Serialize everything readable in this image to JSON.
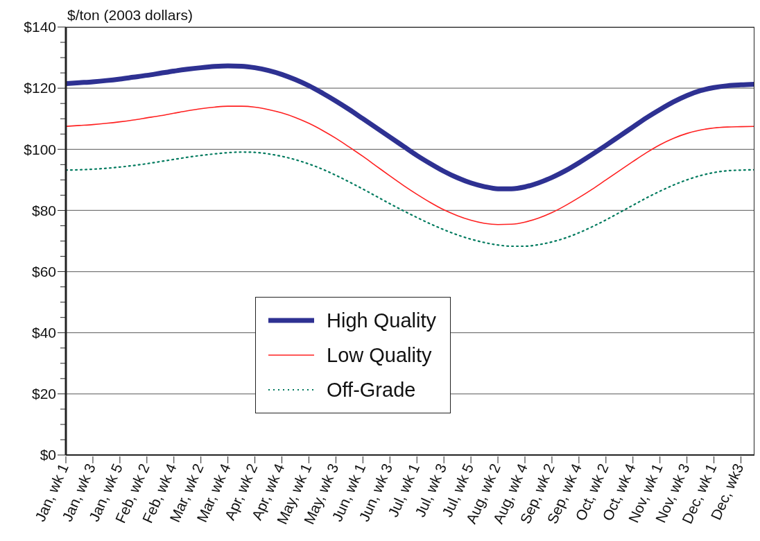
{
  "chart_data": {
    "type": "line",
    "ylabel": "$/ton (2003 dollars)",
    "categories": [
      "Jan, wk 1",
      null,
      "Jan, wk 3",
      null,
      "Jan, wk 5",
      null,
      "Feb, wk 2",
      null,
      "Feb, wk 4",
      null,
      "Mar, wk 2",
      null,
      "Mar, wk 4",
      null,
      "Apr, wk 2",
      null,
      "Apr, wk 4",
      null,
      "May, wk 1",
      null,
      "May, wk 3",
      null,
      "Jun, wk 1",
      null,
      "Jun, wk 3",
      null,
      "Jul, wk 1",
      null,
      "Jul, wk 3",
      null,
      "Jul, wk 5",
      null,
      "Aug, wk 2",
      null,
      "Aug, wk 4",
      null,
      "Sep, wk 2",
      null,
      "Sep, wk 4",
      null,
      "Oct, wk 2",
      null,
      "Oct, wk 4",
      null,
      "Nov, wk 1",
      null,
      "Nov, wk 3",
      null,
      "Dec, wk 1",
      null,
      "Dec, wk3",
      null
    ],
    "series": [
      {
        "name": "High Quality",
        "color": "#2e3192",
        "line_style": "solid",
        "values": [
          121.5,
          121.8,
          122.1,
          122.5,
          123,
          123.6,
          124.2,
          124.9,
          125.6,
          126.2,
          126.7,
          127.1,
          127.3,
          127.2,
          126.7,
          125.8,
          124.5,
          122.8,
          120.8,
          118.4,
          115.8,
          113,
          110,
          107,
          104,
          101,
          98,
          95.3,
          92.8,
          90.7,
          89,
          87.8,
          87.1,
          87.1,
          87.7,
          89,
          90.8,
          93,
          95.6,
          98.4,
          101.3,
          104.3,
          107.3,
          110.3,
          113,
          115.5,
          117.6,
          119.2,
          120.2,
          120.8,
          121.1,
          121.3
        ]
      },
      {
        "name": "Low Quality",
        "color": "#ff2020",
        "line_style": "solid",
        "values": [
          107.5,
          107.8,
          108.1,
          108.5,
          109,
          109.6,
          110.3,
          111,
          111.8,
          112.6,
          113.3,
          113.8,
          114.1,
          114.1,
          113.8,
          113,
          111.9,
          110.4,
          108.5,
          106.2,
          103.6,
          100.7,
          97.7,
          94.5,
          91.3,
          88.2,
          85.3,
          82.6,
          80.2,
          78.3,
          76.8,
          75.8,
          75.4,
          75.5,
          76.2,
          77.5,
          79.3,
          81.6,
          84.2,
          87,
          90,
          93,
          96,
          98.9,
          101.5,
          103.6,
          105.2,
          106.3,
          107,
          107.3,
          107.4,
          107.5
        ]
      },
      {
        "name": "Off-Grade",
        "color": "#007a5e",
        "line_style": "dotted",
        "values": [
          93.2,
          93.3,
          93.5,
          93.8,
          94.2,
          94.7,
          95.3,
          96,
          96.7,
          97.4,
          98,
          98.5,
          98.9,
          99.1,
          99,
          98.5,
          97.7,
          96.6,
          95.2,
          93.5,
          91.5,
          89.3,
          87,
          84.6,
          82.2,
          79.9,
          77.7,
          75.6,
          73.7,
          72,
          70.6,
          69.5,
          68.7,
          68.3,
          68.3,
          68.8,
          69.7,
          71,
          72.7,
          74.7,
          76.9,
          79.3,
          81.7,
          84.1,
          86.3,
          88.3,
          90,
          91.4,
          92.4,
          93,
          93.2,
          93.3
        ]
      }
    ],
    "ylim": [
      0,
      140
    ],
    "yticks": [
      {
        "value": 0,
        "label": "$0"
      },
      {
        "value": 5,
        "label": null
      },
      {
        "value": 10,
        "label": null
      },
      {
        "value": 15,
        "label": null
      },
      {
        "value": 20,
        "label": "$20"
      },
      {
        "value": 25,
        "label": null
      },
      {
        "value": 30,
        "label": null
      },
      {
        "value": 35,
        "label": null
      },
      {
        "value": 40,
        "label": "$40"
      },
      {
        "value": 45,
        "label": null
      },
      {
        "value": 50,
        "label": null
      },
      {
        "value": 55,
        "label": null
      },
      {
        "value": 60,
        "label": "$60"
      },
      {
        "value": 65,
        "label": null
      },
      {
        "value": 70,
        "label": null
      },
      {
        "value": 75,
        "label": null
      },
      {
        "value": 80,
        "label": "$80"
      },
      {
        "value": 85,
        "label": null
      },
      {
        "value": 90,
        "label": null
      },
      {
        "value": 95,
        "label": null
      },
      {
        "value": 100,
        "label": "$100"
      },
      {
        "value": 105,
        "label": null
      },
      {
        "value": 110,
        "label": null
      },
      {
        "value": 115,
        "label": null
      },
      {
        "value": 120,
        "label": "$120"
      },
      {
        "value": 125,
        "label": null
      },
      {
        "value": 130,
        "label": null
      },
      {
        "value": 135,
        "label": null
      },
      {
        "value": 140,
        "label": "$140"
      }
    ],
    "grid": "y",
    "legend": "bottom",
    "marker": "none"
  }
}
